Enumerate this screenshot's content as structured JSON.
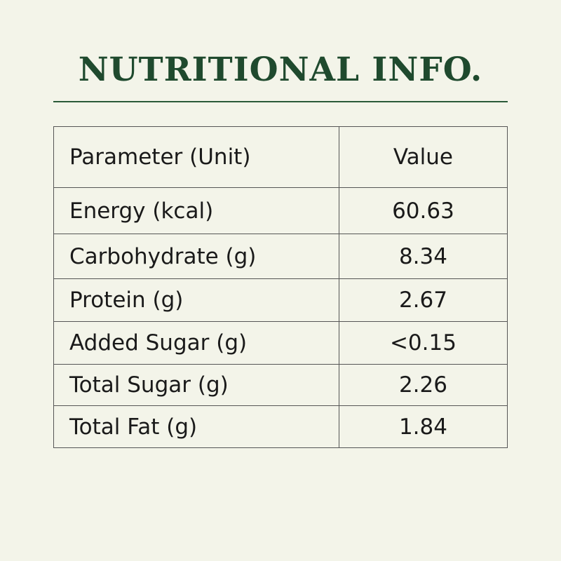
{
  "header": {
    "title": "NUTRITIONAL INFO."
  },
  "table": {
    "columns": [
      "Parameter (Unit)",
      "Value"
    ],
    "rows": [
      [
        "Energy (kcal)",
        "60.63"
      ],
      [
        "Carbohydrate (g)",
        "8.34"
      ],
      [
        "Protein (g)",
        "2.67"
      ],
      [
        "Added Sugar (g)",
        "<0.15"
      ],
      [
        "Total Sugar (g)",
        "2.26"
      ],
      [
        "Total Fat (g)",
        "1.84"
      ]
    ]
  }
}
